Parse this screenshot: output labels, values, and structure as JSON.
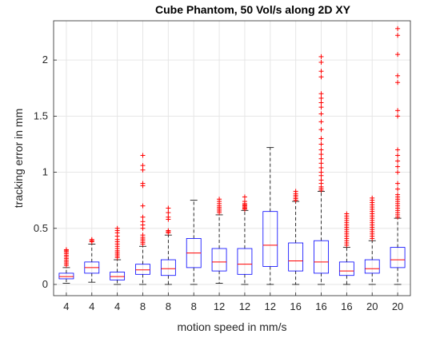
{
  "chart_data": {
    "type": "boxplot",
    "title": "Cube Phantom, 50 Vol/s along 2D XY",
    "xlabel": "motion speed in mm/s",
    "ylabel": "tracking error in mm",
    "ylim": [
      -0.1,
      2.35
    ],
    "yticks": [
      0,
      0.5,
      1,
      1.5,
      2
    ],
    "ytick_labels": [
      "0",
      "0.5",
      "1",
      "1.5",
      "2"
    ],
    "grid": true,
    "categories": [
      "4",
      "4",
      "4",
      "8",
      "8",
      "8",
      "12",
      "12",
      "12",
      "16",
      "16",
      "16",
      "20",
      "20"
    ],
    "boxes": [
      {
        "whisker_low": 0.01,
        "q1": 0.05,
        "median": 0.07,
        "q3": 0.1,
        "whisker_high": 0.15,
        "outliers": [
          0.17,
          0.185,
          0.2,
          0.215,
          0.23,
          0.245,
          0.26,
          0.275,
          0.29,
          0.3,
          0.31
        ]
      },
      {
        "whisker_low": 0.02,
        "q1": 0.1,
        "median": 0.15,
        "q3": 0.2,
        "whisker_high": 0.36,
        "outliers": [
          0.38,
          0.39,
          0.4
        ]
      },
      {
        "whisker_low": 0.0,
        "q1": 0.04,
        "median": 0.07,
        "q3": 0.11,
        "whisker_high": 0.22,
        "outliers": [
          0.24,
          0.255,
          0.27,
          0.285,
          0.3,
          0.32,
          0.34,
          0.36,
          0.38,
          0.4,
          0.43,
          0.46,
          0.48,
          0.5
        ]
      },
      {
        "whisker_low": 0.0,
        "q1": 0.09,
        "median": 0.13,
        "q3": 0.18,
        "whisker_high": 0.34,
        "outliers": [
          0.36,
          0.375,
          0.39,
          0.405,
          0.42,
          0.44,
          0.5,
          0.53,
          0.56,
          0.6,
          0.7,
          0.88,
          0.9,
          1.02,
          1.06,
          1.15
        ]
      },
      {
        "whisker_low": 0.0,
        "q1": 0.08,
        "median": 0.14,
        "q3": 0.22,
        "whisker_high": 0.44,
        "outliers": [
          0.46,
          0.47,
          0.48,
          0.58,
          0.6,
          0.64,
          0.68
        ]
      },
      {
        "whisker_low": 0.0,
        "q1": 0.15,
        "median": 0.28,
        "q3": 0.41,
        "whisker_high": 0.75,
        "outliers": []
      },
      {
        "whisker_low": 0.01,
        "q1": 0.12,
        "median": 0.2,
        "q3": 0.32,
        "whisker_high": 0.62,
        "outliers": [
          0.64,
          0.655,
          0.67,
          0.685,
          0.7,
          0.72,
          0.74,
          0.76
        ]
      },
      {
        "whisker_low": 0.0,
        "q1": 0.09,
        "median": 0.18,
        "q3": 0.32,
        "whisker_high": 0.66,
        "outliers": [
          0.67,
          0.68,
          0.69,
          0.7,
          0.71,
          0.72,
          0.74,
          0.78
        ]
      },
      {
        "whisker_low": 0.0,
        "q1": 0.16,
        "median": 0.35,
        "q3": 0.65,
        "whisker_high": 1.22,
        "outliers": []
      },
      {
        "whisker_low": 0.0,
        "q1": 0.12,
        "median": 0.21,
        "q3": 0.37,
        "whisker_high": 0.74,
        "outliers": [
          0.75,
          0.765,
          0.78,
          0.795,
          0.81,
          0.83
        ]
      },
      {
        "whisker_low": 0.0,
        "q1": 0.1,
        "median": 0.2,
        "q3": 0.39,
        "whisker_high": 0.83,
        "outliers": [
          0.84,
          0.855,
          0.87,
          0.9,
          0.93,
          0.97,
          1.0,
          1.04,
          1.08,
          1.12,
          1.16,
          1.2,
          1.25,
          1.3,
          1.38,
          1.45,
          1.52,
          1.58,
          1.62,
          1.66,
          1.7,
          1.85,
          1.9,
          1.98,
          2.03
        ]
      },
      {
        "whisker_low": 0.0,
        "q1": 0.08,
        "median": 0.12,
        "q3": 0.2,
        "whisker_high": 0.33,
        "outliers": [
          0.35,
          0.37,
          0.39,
          0.41,
          0.43,
          0.45,
          0.47,
          0.49,
          0.51,
          0.53,
          0.55,
          0.57,
          0.59,
          0.61,
          0.63
        ]
      },
      {
        "whisker_low": 0.0,
        "q1": 0.1,
        "median": 0.14,
        "q3": 0.22,
        "whisker_high": 0.39,
        "outliers": [
          0.41,
          0.43,
          0.45,
          0.47,
          0.49,
          0.51,
          0.53,
          0.55,
          0.57,
          0.59,
          0.61,
          0.63,
          0.65,
          0.67,
          0.69,
          0.71,
          0.73,
          0.75,
          0.77
        ]
      },
      {
        "whisker_low": 0.0,
        "q1": 0.15,
        "median": 0.22,
        "q3": 0.33,
        "whisker_high": 0.59,
        "outliers": [
          0.6,
          0.62,
          0.64,
          0.66,
          0.68,
          0.7,
          0.72,
          0.74,
          0.76,
          0.78,
          0.8,
          0.85,
          0.9,
          1.0,
          1.05,
          1.1,
          1.15,
          1.2,
          1.5,
          1.55,
          1.8,
          1.86,
          2.05,
          2.22,
          2.28
        ]
      }
    ]
  },
  "colors": {
    "box": "#0000ff",
    "median": "#ff0000",
    "outlier": "#ff0000",
    "whisker": "#000000",
    "grid": "#e6e6e6"
  }
}
